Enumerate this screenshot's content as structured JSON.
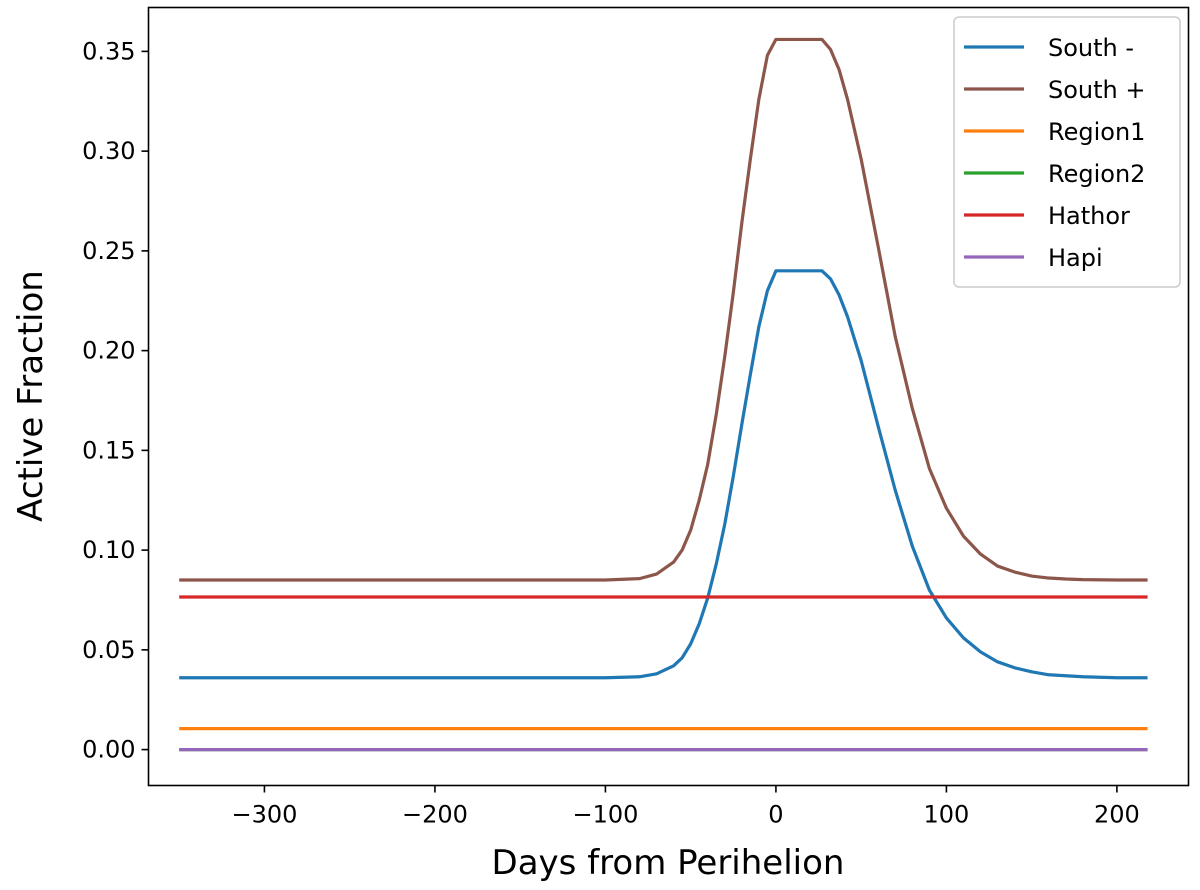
{
  "chart_data": {
    "type": "line",
    "title": "",
    "xlabel": "Days from Perihelion",
    "ylabel": "Active Fraction",
    "xlim": [
      -368,
      242
    ],
    "ylim": [
      -0.018,
      0.372
    ],
    "xticks": [
      -300,
      -200,
      -100,
      0,
      100,
      200
    ],
    "xtick_labels": [
      "−300",
      "−200",
      "−100",
      "0",
      "100",
      "200"
    ],
    "yticks": [
      0.0,
      0.05,
      0.1,
      0.15,
      0.2,
      0.25,
      0.3,
      0.35
    ],
    "ytick_labels": [
      "0.00",
      "0.05",
      "0.10",
      "0.15",
      "0.20",
      "0.25",
      "0.30",
      "0.35"
    ],
    "grid": false,
    "legend_position": "top-right",
    "series": [
      {
        "name": "South -",
        "color": "#1f77b4",
        "x": [
          -350,
          -100,
          -80,
          -70,
          -60,
          -55,
          -50,
          -45,
          -40,
          -35,
          -30,
          -25,
          -20,
          -15,
          -10,
          -5,
          0,
          10,
          20,
          27,
          32,
          37,
          42,
          50,
          60,
          70,
          80,
          90,
          100,
          110,
          120,
          130,
          140,
          150,
          160,
          170,
          180,
          200,
          218
        ],
        "y": [
          0.036,
          0.036,
          0.0365,
          0.038,
          0.042,
          0.046,
          0.053,
          0.063,
          0.076,
          0.093,
          0.113,
          0.137,
          0.163,
          0.188,
          0.212,
          0.23,
          0.24,
          0.24,
          0.24,
          0.24,
          0.236,
          0.228,
          0.217,
          0.195,
          0.162,
          0.13,
          0.102,
          0.08,
          0.066,
          0.056,
          0.049,
          0.044,
          0.041,
          0.039,
          0.0375,
          0.037,
          0.0365,
          0.036,
          0.036
        ]
      },
      {
        "name": "South +",
        "color": "#8c564b",
        "x": [
          -350,
          -100,
          -80,
          -70,
          -60,
          -55,
          -50,
          -45,
          -40,
          -35,
          -30,
          -25,
          -20,
          -15,
          -10,
          -5,
          0,
          10,
          20,
          27,
          32,
          37,
          42,
          50,
          60,
          70,
          80,
          90,
          100,
          110,
          120,
          130,
          140,
          150,
          160,
          170,
          180,
          200,
          218
        ],
        "y": [
          0.085,
          0.085,
          0.0857,
          0.088,
          0.094,
          0.1,
          0.11,
          0.125,
          0.143,
          0.168,
          0.197,
          0.229,
          0.264,
          0.296,
          0.326,
          0.348,
          0.356,
          0.356,
          0.356,
          0.356,
          0.351,
          0.341,
          0.326,
          0.296,
          0.252,
          0.207,
          0.171,
          0.141,
          0.121,
          0.107,
          0.098,
          0.092,
          0.089,
          0.087,
          0.086,
          0.0855,
          0.0852,
          0.085,
          0.085
        ]
      },
      {
        "name": "Region1",
        "color": "#ff7f0e",
        "x": [
          -350,
          218
        ],
        "y": [
          0.0105,
          0.0105
        ]
      },
      {
        "name": "Region2",
        "color": "#2ca02c",
        "x": [
          -350,
          218
        ],
        "y": [
          0.0,
          0.0
        ]
      },
      {
        "name": "Hathor",
        "color": "#d62728",
        "x": [
          -350,
          218
        ],
        "y": [
          0.0765,
          0.0765
        ]
      },
      {
        "name": "Hapi",
        "color": "#9467bd",
        "x": [
          -350,
          218
        ],
        "y": [
          0.0,
          0.0
        ]
      }
    ]
  }
}
